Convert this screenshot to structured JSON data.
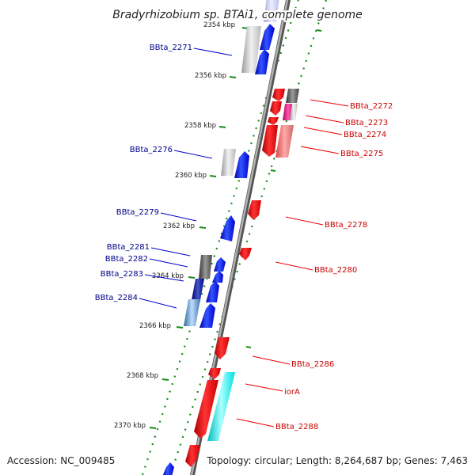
{
  "title": "Bradyrhizobium sp. BTAi1, complete genome",
  "footer": {
    "accession": "Accession: NC_009485",
    "topology": "Topology: circular; Length: 8,264,687 bp; Genes: 7,463"
  },
  "colors": {
    "forward": "#0000ee",
    "reverse": "#ee0000",
    "backbone": "#888888",
    "tick_dots": "#1a8a1a",
    "label_forward": "#00008b",
    "label_reverse": "#cc0000"
  },
  "ticks": [
    {
      "label": "2354 kbp"
    },
    {
      "label": "2356 kbp"
    },
    {
      "label": "2358 kbp"
    },
    {
      "label": "2360 kbp"
    },
    {
      "label": "2362 kbp"
    },
    {
      "label": "2364 kbp"
    },
    {
      "label": "2366 kbp"
    },
    {
      "label": "2368 kbp"
    },
    {
      "label": "2370 kbp"
    }
  ],
  "labels_forward": [
    {
      "name": "BBta_2271"
    },
    {
      "name": "BBta_2276"
    },
    {
      "name": "BBta_2279"
    },
    {
      "name": "BBta_2281"
    },
    {
      "name": "BBta_2282"
    },
    {
      "name": "BBta_2283"
    },
    {
      "name": "BBta_2284"
    }
  ],
  "labels_reverse": [
    {
      "name": "BBta_2272"
    },
    {
      "name": "BBta_2273"
    },
    {
      "name": "BBta_2274"
    },
    {
      "name": "BBta_2275"
    },
    {
      "name": "BBta_2278"
    },
    {
      "name": "BBta_2280"
    },
    {
      "name": "BBta_2286"
    },
    {
      "name": "iorA"
    },
    {
      "name": "BBta_2288"
    }
  ]
}
